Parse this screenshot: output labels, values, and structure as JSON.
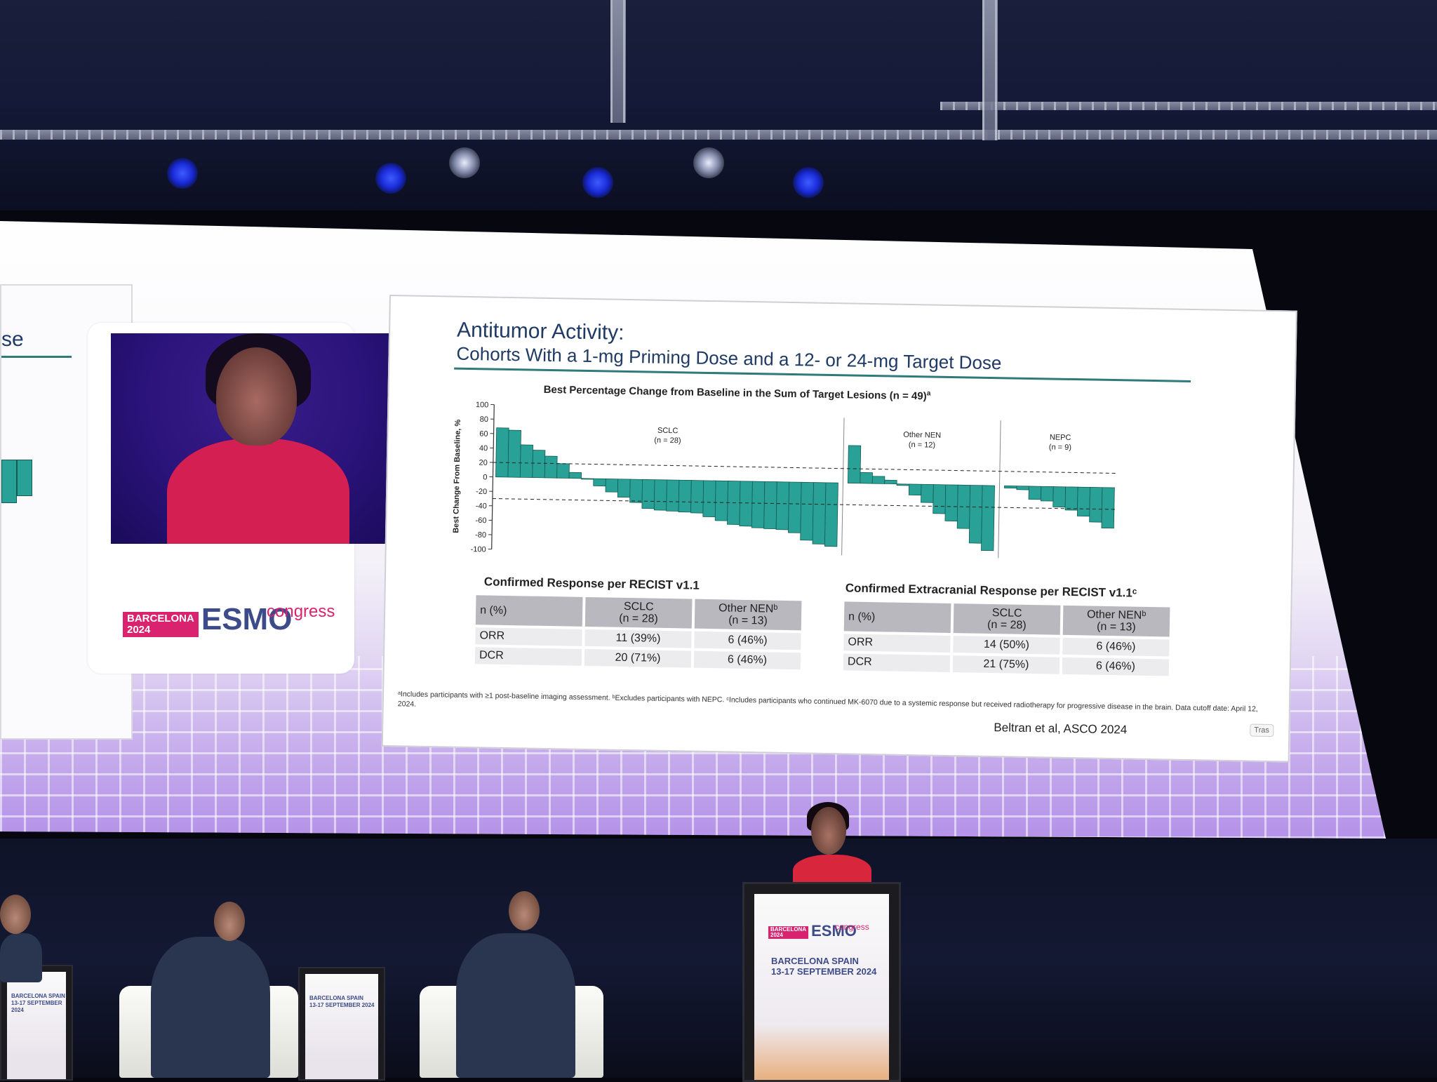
{
  "slide": {
    "title": "Antitumor Activity:",
    "subtitle": "Cohorts With a 1-mg Priming Dose and a 12- or 24-mg Target Dose",
    "chart_title": "Best Percentage Change from Baseline in the Sum of Target Lesions (n = 49)",
    "chart_title_sup": "a",
    "footnote": "ᵃIncludes participants with ≥1 post-baseline imaging assessment. ᵇExcludes participants with NEPC. ᶜIncludes participants who continued MK-6070 due to a systemic response but received radiotherapy for progressive disease in the brain. Data cutoff date: April 12, 2024.",
    "citation": "Beltran et al, ASCO 2024",
    "tras_button": "Tras",
    "table1": {
      "title": "Confirmed Response per RECIST v1.1",
      "headers": [
        "n (%)",
        "SCLC\n(n = 28)",
        "Other NENᵇ\n(n = 13)"
      ],
      "rows": [
        [
          "ORR",
          "11 (39%)",
          "6 (46%)"
        ],
        [
          "DCR",
          "20 (71%)",
          "6 (46%)"
        ]
      ]
    },
    "table2": {
      "title": "Confirmed Extracranial Response per RECIST v1.1ᶜ",
      "headers": [
        "n (%)",
        "SCLC\n(n = 28)",
        "Other NENᵇ\n(n = 13)"
      ],
      "rows": [
        [
          "ORR",
          "14 (50%)",
          "6 (46%)"
        ],
        [
          "DCR",
          "21 (75%)",
          "6 (46%)"
        ]
      ]
    }
  },
  "left_slide_fragment": "se",
  "logo": {
    "city_year": "BARCELONA\n2024",
    "brand": "ESMO",
    "congress": "congress"
  },
  "podium": {
    "location": "BARCELONA SPAIN",
    "dates": "13-17 SEPTEMBER 2024"
  },
  "mini_podium_text": "BARCELONA SPAIN\n13-17 SEPTEMBER 2024",
  "colors": {
    "bar": "#2aa196",
    "bar_edge": "#125c55",
    "accent_rule": "#2f7a7a",
    "title": "#1f3a64",
    "esmo_pink": "#d9236f",
    "esmo_navy": "#3e4b8a"
  },
  "chart_data": {
    "type": "bar",
    "title": "Best Percentage Change from Baseline in the Sum of Target Lesions (n = 49)",
    "ylabel": "Best Change From Baseline, %",
    "ylim": [
      -100,
      100
    ],
    "yticks": [
      100,
      80,
      60,
      40,
      20,
      0,
      -20,
      -40,
      -60,
      -80,
      -100
    ],
    "reference_lines": [
      20,
      -30
    ],
    "groups": [
      {
        "name": "SCLC",
        "n_label": "(n = 28)",
        "values": [
          68,
          65,
          45,
          38,
          30,
          20,
          8,
          0,
          -10,
          -18,
          -25,
          -32,
          -40,
          -42,
          -43,
          -44,
          -45,
          -50,
          -55,
          -60,
          -62,
          -64,
          -65,
          -66,
          -70,
          -80,
          -85,
          -88
        ]
      },
      {
        "name": "Other NEN",
        "n_label": "(n = 12)",
        "values": [
          52,
          15,
          10,
          5,
          -2,
          -15,
          -25,
          -40,
          -50,
          -60,
          -80,
          -90
        ]
      },
      {
        "name": "NEPC",
        "n_label": "(n = 9)",
        "values": [
          -3,
          -5,
          -18,
          -20,
          -28,
          -32,
          -40,
          -48,
          -56
        ]
      }
    ]
  }
}
